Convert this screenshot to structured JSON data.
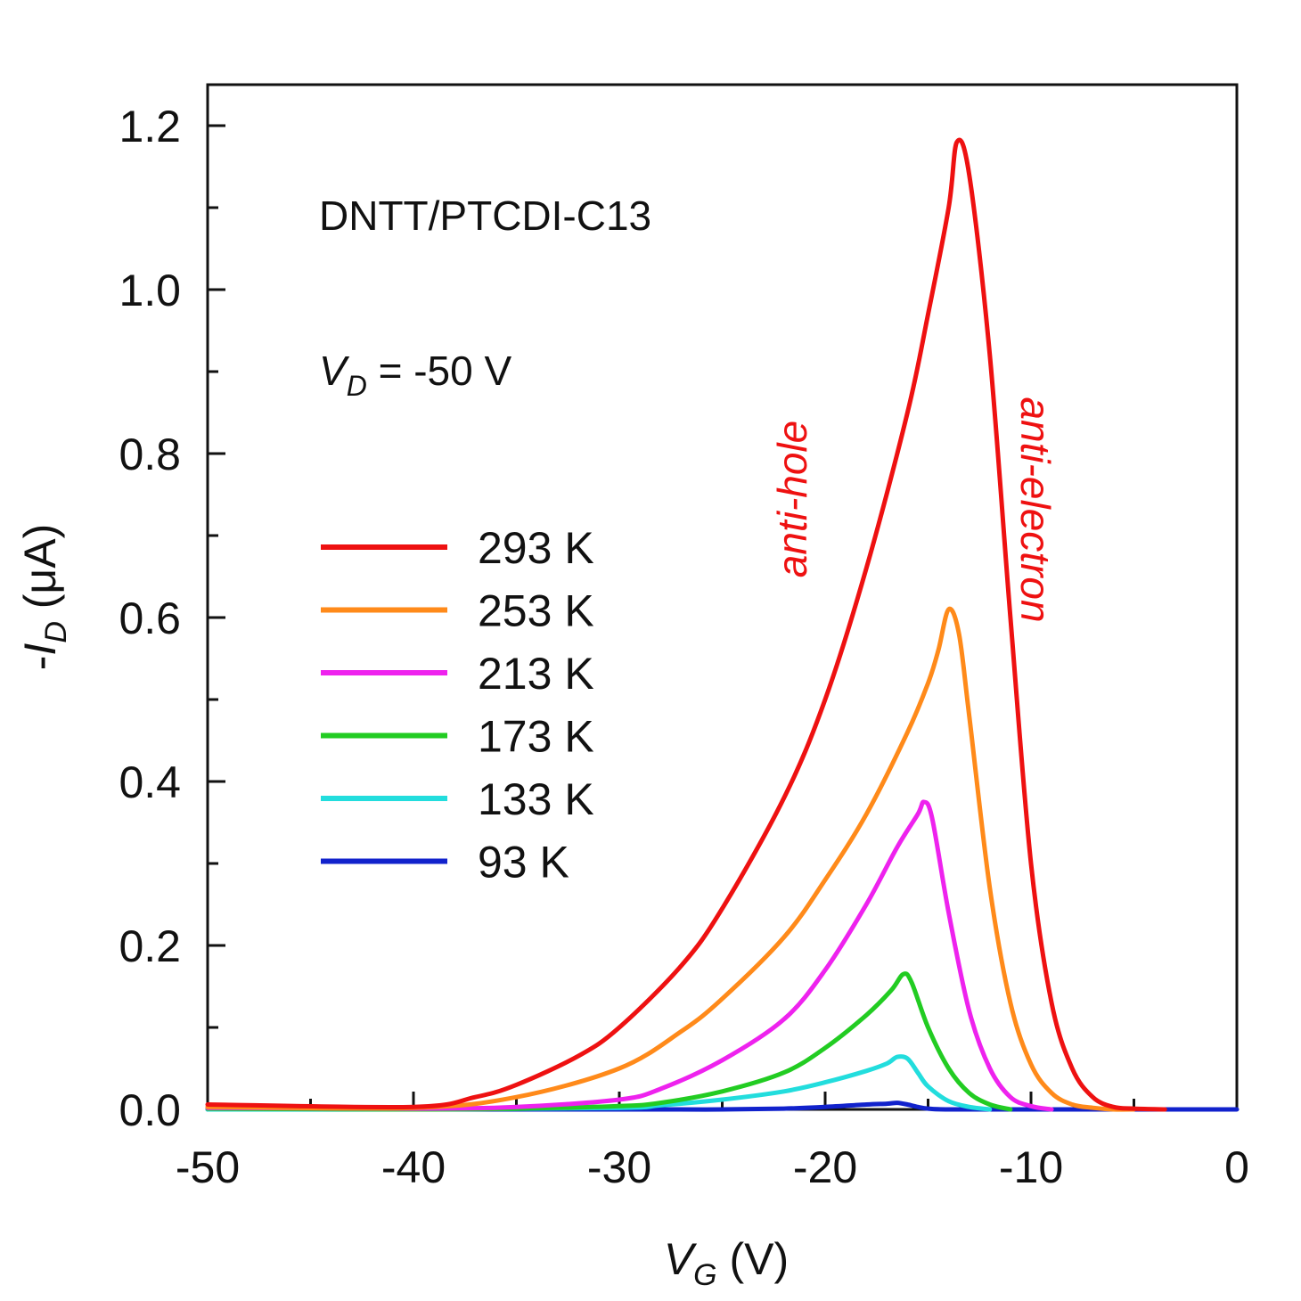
{
  "chart_data": {
    "type": "line",
    "xlabel": {
      "main": "V",
      "sub": "G",
      "rest": " (V)"
    },
    "ylabel": {
      "prefix": "-",
      "main": "I",
      "sub": "D",
      "rest": " (μA)"
    },
    "xlim": [
      -50,
      0
    ],
    "ylim": [
      0,
      1.25
    ],
    "x_ticks": [
      -50,
      -40,
      -30,
      -20,
      -10,
      0
    ],
    "x_tick_labels": [
      "-50",
      "-40",
      "-30",
      "-20",
      "-10",
      "0"
    ],
    "x_minor_step": 5,
    "y_ticks": [
      0,
      0.2,
      0.4,
      0.6,
      0.8,
      1.0,
      1.2
    ],
    "y_tick_labels": [
      "0.0",
      "0.2",
      "0.4",
      "0.6",
      "0.8",
      "1.0",
      "1.2"
    ],
    "y_minor_step": 0.1,
    "annotations": {
      "material": "DNTT/PTCDI-C13",
      "drain_voltage": {
        "main": "V",
        "sub": "D",
        "rest": " = -50 V"
      },
      "left_regime": "anti-hole",
      "right_regime": "anti-electron",
      "regime_color": "#ee1111"
    },
    "legend": {
      "position": "left-middle"
    },
    "series": [
      {
        "name": "293 K",
        "color": "#ee1111",
        "x": [
          -50,
          -40,
          -37,
          -35,
          -32,
          -30,
          -27,
          -25,
          -22,
          -20,
          -18,
          -16,
          -15,
          -14,
          -13.6,
          -13,
          -12,
          -11,
          -10,
          -9,
          -8,
          -7,
          -6,
          -5,
          -3.5
        ],
        "y": [
          0.006,
          0.003,
          0.015,
          0.03,
          0.065,
          0.1,
          0.175,
          0.245,
          0.38,
          0.5,
          0.66,
          0.85,
          0.97,
          1.1,
          1.18,
          1.14,
          0.92,
          0.6,
          0.3,
          0.13,
          0.05,
          0.015,
          0.003,
          0.001,
          0
        ]
      },
      {
        "name": "253 K",
        "color": "#ff8a1a",
        "x": [
          -50,
          -40,
          -35,
          -30,
          -27,
          -25,
          -22,
          -20,
          -18,
          -16,
          -15,
          -14.5,
          -14,
          -13.5,
          -13,
          -12,
          -11,
          -10,
          -9,
          -8,
          -7,
          -6,
          -5
        ],
        "y": [
          0.003,
          0.002,
          0.015,
          0.05,
          0.095,
          0.135,
          0.21,
          0.28,
          0.36,
          0.46,
          0.52,
          0.56,
          0.61,
          0.58,
          0.48,
          0.27,
          0.13,
          0.055,
          0.02,
          0.006,
          0.002,
          0,
          0
        ]
      },
      {
        "name": "213 K",
        "color": "#ee22ee",
        "x": [
          -50,
          -40,
          -35,
          -30,
          -28,
          -25,
          -22,
          -20,
          -18,
          -16.5,
          -15.5,
          -15.2,
          -14.8,
          -14,
          -13,
          -12,
          -11,
          -10,
          -9
        ],
        "y": [
          0.002,
          0.001,
          0.003,
          0.012,
          0.025,
          0.06,
          0.11,
          0.17,
          0.25,
          0.32,
          0.36,
          0.375,
          0.355,
          0.24,
          0.12,
          0.05,
          0.015,
          0.004,
          0
        ]
      },
      {
        "name": "173 K",
        "color": "#22cc22",
        "x": [
          -50,
          -40,
          -35,
          -30,
          -28,
          -25,
          -22,
          -20,
          -18,
          -16.8,
          -16.2,
          -15.8,
          -15,
          -14,
          -13,
          -12,
          -11
        ],
        "y": [
          0.001,
          0,
          0.001,
          0.004,
          0.008,
          0.022,
          0.045,
          0.075,
          0.115,
          0.145,
          0.165,
          0.155,
          0.1,
          0.05,
          0.02,
          0.006,
          0
        ]
      },
      {
        "name": "133 K",
        "color": "#22dddd",
        "x": [
          -50,
          -40,
          -30,
          -28,
          -25,
          -22,
          -20,
          -18,
          -17,
          -16.5,
          -16,
          -15.5,
          -15,
          -14,
          -13,
          -12
        ],
        "y": [
          0,
          0,
          0.002,
          0.005,
          0.012,
          0.022,
          0.033,
          0.047,
          0.056,
          0.064,
          0.062,
          0.045,
          0.028,
          0.01,
          0.003,
          0
        ]
      },
      {
        "name": "93 K",
        "color": "#1122cc",
        "x": [
          -50,
          -30,
          -25,
          -22,
          -20,
          -18,
          -17,
          -16.5,
          -16,
          -15.5,
          -15,
          -14,
          -10,
          0
        ],
        "y": [
          0,
          0,
          0,
          0.001,
          0.003,
          0.006,
          0.007,
          0.008,
          0.006,
          0.003,
          0.001,
          0,
          0,
          0
        ]
      }
    ]
  }
}
